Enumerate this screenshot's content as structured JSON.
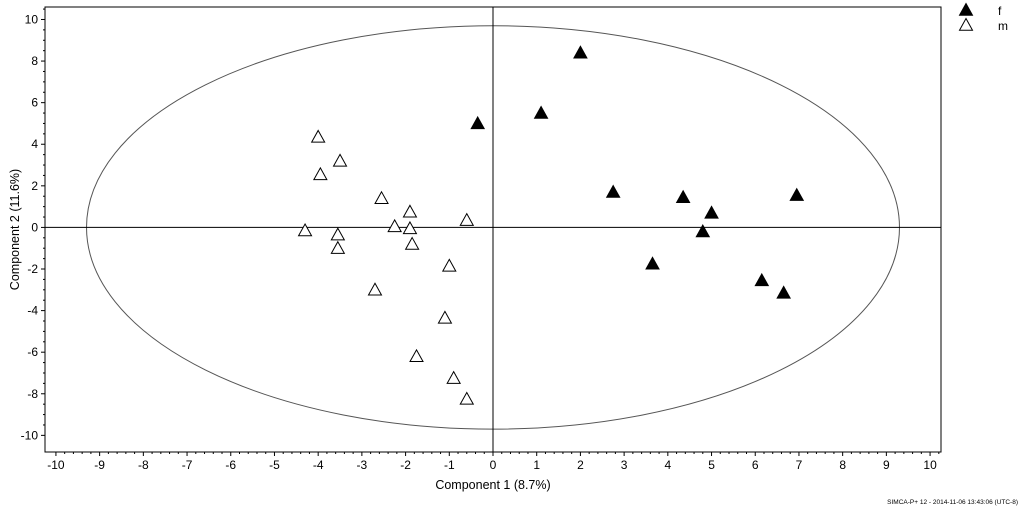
{
  "footer": {
    "note": "SIMCA-P+ 12 - 2014-11-06 13:43:06 (UTC-8)"
  },
  "chart_data": {
    "type": "scatter",
    "xlabel": "Component 1 (8.7%)",
    "ylabel": "Component 2 (11.6%)",
    "xlim": [
      -10.25,
      10.25
    ],
    "ylim": [
      -10.8,
      10.6
    ],
    "xticks": [
      -10,
      -9,
      -8,
      -7,
      -6,
      -5,
      -4,
      -3,
      -2,
      -1,
      0,
      1,
      2,
      3,
      4,
      5,
      6,
      7,
      8,
      9,
      10
    ],
    "yticks": [
      -10,
      -8,
      -6,
      -4,
      -2,
      0,
      2,
      4,
      6,
      8,
      10
    ],
    "grid": false,
    "legend_position": "top-right",
    "ellipse": {
      "cx": 0,
      "cy": 0,
      "rx": 9.3,
      "ry": 9.7
    },
    "series": [
      {
        "name": "f",
        "marker": "filled-triangle",
        "color": "#000000",
        "points": [
          [
            2.0,
            8.4
          ],
          [
            1.1,
            5.5
          ],
          [
            -0.35,
            5.0
          ],
          [
            2.75,
            1.7
          ],
          [
            4.35,
            1.45
          ],
          [
            5.0,
            0.7
          ],
          [
            6.95,
            1.55
          ],
          [
            4.8,
            -0.2
          ],
          [
            3.65,
            -1.75
          ],
          [
            6.15,
            -2.55
          ],
          [
            6.65,
            -3.15
          ]
        ]
      },
      {
        "name": "m",
        "marker": "open-triangle",
        "color": "#000000",
        "points": [
          [
            -4.0,
            4.35
          ],
          [
            -3.5,
            3.2
          ],
          [
            -3.95,
            2.55
          ],
          [
            -2.55,
            1.4
          ],
          [
            -1.9,
            0.75
          ],
          [
            -2.25,
            0.05
          ],
          [
            -1.9,
            -0.05
          ],
          [
            -0.6,
            0.35
          ],
          [
            -4.3,
            -0.15
          ],
          [
            -3.55,
            -0.35
          ],
          [
            -3.55,
            -1.0
          ],
          [
            -1.85,
            -0.8
          ],
          [
            -1.0,
            -1.85
          ],
          [
            -2.7,
            -3.0
          ],
          [
            -1.1,
            -4.35
          ],
          [
            -1.75,
            -6.2
          ],
          [
            -0.9,
            -7.25
          ],
          [
            -0.6,
            -8.25
          ]
        ]
      }
    ]
  }
}
